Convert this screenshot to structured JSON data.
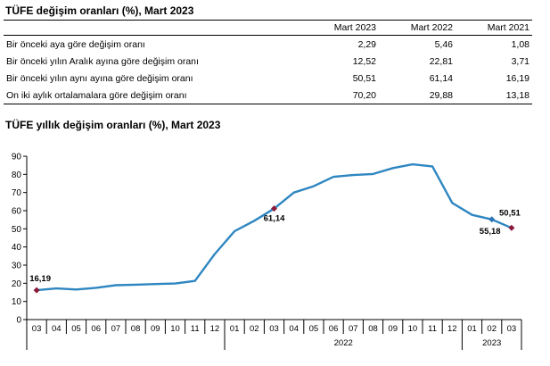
{
  "table": {
    "title": "TÜFE değişim oranları (%), Mart 2023",
    "header_blank": "",
    "columns": [
      "Mart 2023",
      "Mart 2022",
      "Mart 2021"
    ],
    "rows": [
      {
        "label": "Bir önceki aya göre değişim oranı",
        "values": [
          "2,29",
          "5,46",
          "1,08"
        ]
      },
      {
        "label": "Bir önceki yılın Aralık ayına göre değişim oranı",
        "values": [
          "12,52",
          "22,81",
          "3,71"
        ]
      },
      {
        "label": "Bir önceki yılın aynı ayına göre değişim oranı",
        "values": [
          "50,51",
          "61,14",
          "16,19"
        ]
      },
      {
        "label": "On iki aylık ortalamalara göre değişim oranı",
        "values": [
          "70,20",
          "29,88",
          "13,18"
        ]
      }
    ]
  },
  "chart_data": {
    "type": "line",
    "title": "TÜFE yıllık değişim oranları (%), Mart 2023",
    "categories": [
      "03",
      "04",
      "05",
      "06",
      "07",
      "08",
      "09",
      "10",
      "11",
      "12",
      "01",
      "02",
      "03",
      "04",
      "05",
      "06",
      "07",
      "08",
      "09",
      "10",
      "11",
      "12",
      "01",
      "02",
      "03"
    ],
    "year_groups": [
      {
        "label": "",
        "start": 0,
        "end": 9
      },
      {
        "label": "2022",
        "start": 10,
        "end": 21
      },
      {
        "label": "2023",
        "start": 22,
        "end": 24
      }
    ],
    "series": [
      {
        "values": [
          16.19,
          17.14,
          16.59,
          17.53,
          18.95,
          19.25,
          19.58,
          19.89,
          21.31,
          36.08,
          48.69,
          54.44,
          61.14,
          69.97,
          73.5,
          78.62,
          79.6,
          80.21,
          83.45,
          85.51,
          84.39,
          64.27,
          57.68,
          55.18,
          50.51
        ]
      }
    ],
    "highlighted": [
      {
        "index": 0,
        "label": "16,19",
        "color": "#8b1a3a"
      },
      {
        "index": 12,
        "label": "61,14",
        "color": "#8b1a3a"
      },
      {
        "index": 23,
        "label": "55,18",
        "color": "#2e75b6"
      },
      {
        "index": 24,
        "label": "50,51",
        "color": "#8b1a3a"
      }
    ],
    "ylim": [
      0,
      90
    ],
    "yticks": [
      0,
      10,
      20,
      30,
      40,
      50,
      60,
      70,
      80,
      90
    ],
    "line_color": "#2e86c1",
    "grid": false
  }
}
